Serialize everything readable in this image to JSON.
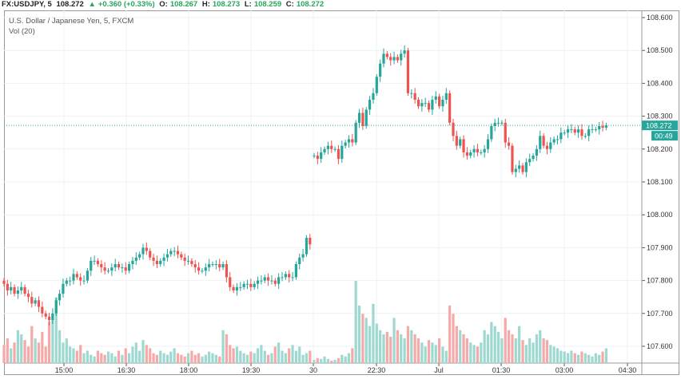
{
  "header": {
    "symbol": "FX:USDJPY, 5",
    "last": "108.272",
    "change": "+0.360 (+0.33%)",
    "o_label": "O:",
    "o": "108.267",
    "h_label": "H:",
    "h": "108.273",
    "l_label": "L:",
    "l": "108.259",
    "c_label": "C:",
    "c": "108.272"
  },
  "legend": {
    "title": "U.S. Dollar / Japanese Yen, 5, FXCM",
    "volume": "Vol (20)"
  },
  "colors": {
    "up": "#26a69a",
    "down": "#ef5350",
    "up_vol": "#9ed9d1",
    "down_vol": "#f5a9a8",
    "price_line": "#26a69a"
  },
  "chart_data": {
    "type": "candlestick",
    "title": "U.S. Dollar / Japanese Yen, 5, FXCM",
    "ylim": [
      107.55,
      108.62
    ],
    "y_ticks": [
      "108.600",
      "108.500",
      "108.400",
      "108.300",
      "108.200",
      "108.100",
      "108.000",
      "107.900",
      "107.800",
      "107.700",
      "107.600"
    ],
    "x_ticks": [
      "15:00",
      "16:30",
      "18:00",
      "19:30",
      "30",
      "22:30",
      "Jul",
      "01:30",
      "03:00",
      "04:30"
    ],
    "current_price": "108.272",
    "countdown": "00:49",
    "segments": [
      {
        "closes": [
          107.79,
          107.77,
          107.78,
          107.76,
          107.77,
          107.78,
          107.76,
          107.75,
          107.73,
          107.74,
          107.72,
          107.7,
          107.69,
          107.68,
          107.7,
          107.74,
          107.76,
          107.79,
          107.8,
          107.8,
          107.82,
          107.81,
          107.8,
          107.8,
          107.83,
          107.86,
          107.86,
          107.85,
          107.84,
          107.83,
          107.83,
          107.84,
          107.85,
          107.84,
          107.84,
          107.83,
          107.85,
          107.86,
          107.87,
          107.88,
          107.9,
          107.89,
          107.87,
          107.86,
          107.85,
          107.86,
          107.87,
          107.88,
          107.89,
          107.89,
          107.88,
          107.87,
          107.86,
          107.86,
          107.85,
          107.84,
          107.83,
          107.83,
          107.84,
          107.85,
          107.85,
          107.85,
          107.84,
          107.85,
          107.81,
          107.78,
          107.77,
          107.78,
          107.78,
          107.79,
          107.79,
          107.78,
          107.79,
          107.8,
          107.8,
          107.81,
          107.8,
          107.8,
          107.79,
          107.81,
          107.81,
          107.82,
          107.81,
          107.81,
          107.85,
          107.87,
          107.88,
          107.93,
          107.91
        ],
        "volumes": [
          22,
          30,
          18,
          25,
          40,
          35,
          28,
          20,
          45,
          30,
          25,
          38,
          20,
          50,
          60,
          80,
          40,
          25,
          30,
          20,
          18,
          15,
          22,
          12,
          15,
          10,
          8,
          15,
          12,
          10,
          14,
          12,
          8,
          15,
          10,
          18,
          12,
          20,
          25,
          15,
          28,
          22,
          18,
          12,
          10,
          15,
          12,
          10,
          14,
          18,
          12,
          10,
          8,
          12,
          15,
          10,
          12,
          8,
          10,
          14,
          12,
          10,
          8,
          40,
          35,
          22,
          18,
          20,
          15,
          12,
          10,
          14,
          12,
          18,
          22,
          15,
          10,
          12,
          20,
          25,
          15,
          12,
          18,
          22,
          15,
          20,
          10,
          12,
          15
        ]
      },
      {
        "closes": [
          108.18,
          108.17,
          108.19,
          108.2,
          108.21,
          108.2,
          108.2,
          108.17,
          108.21,
          108.22,
          108.23,
          108.22,
          108.28,
          108.31,
          108.27,
          108.32,
          108.35,
          108.37,
          108.42,
          108.46,
          108.49,
          108.48,
          108.47,
          108.48,
          108.47,
          108.49,
          108.5,
          108.37,
          108.37,
          108.35,
          108.33,
          108.34,
          108.34,
          108.32,
          108.35,
          108.36,
          108.33,
          108.35,
          108.37,
          108.28,
          108.24,
          108.21,
          108.23,
          108.19,
          108.18,
          108.19,
          108.2,
          108.19,
          108.19,
          108.2,
          108.23,
          108.27,
          108.28,
          108.28,
          108.28,
          108.22,
          108.21,
          108.13,
          108.14,
          108.15,
          108.13,
          108.16,
          108.17,
          108.18,
          108.2,
          108.24,
          108.21,
          108.2,
          108.22,
          108.23,
          108.23,
          108.25,
          108.25,
          108.26,
          108.26,
          108.25,
          108.26,
          108.24,
          108.24,
          108.26,
          108.26,
          108.26,
          108.27,
          108.265,
          108.272
        ],
        "volumes": [
          4,
          6,
          5,
          8,
          5,
          3,
          4,
          6,
          10,
          8,
          12,
          18,
          100,
          70,
          60,
          55,
          45,
          72,
          48,
          40,
          35,
          38,
          32,
          55,
          40,
          35,
          30,
          45,
          40,
          35,
          30,
          25,
          20,
          28,
          25,
          22,
          30,
          20,
          15,
          70,
          60,
          45,
          40,
          35,
          30,
          25,
          22,
          20,
          25,
          40,
          35,
          50,
          45,
          38,
          30,
          55,
          40,
          35,
          30,
          45,
          28,
          22,
          30,
          25,
          35,
          40,
          30,
          28,
          22,
          20,
          18,
          15,
          14,
          12,
          15,
          12,
          10,
          14,
          12,
          10,
          8,
          12,
          10,
          14,
          18
        ]
      }
    ]
  }
}
